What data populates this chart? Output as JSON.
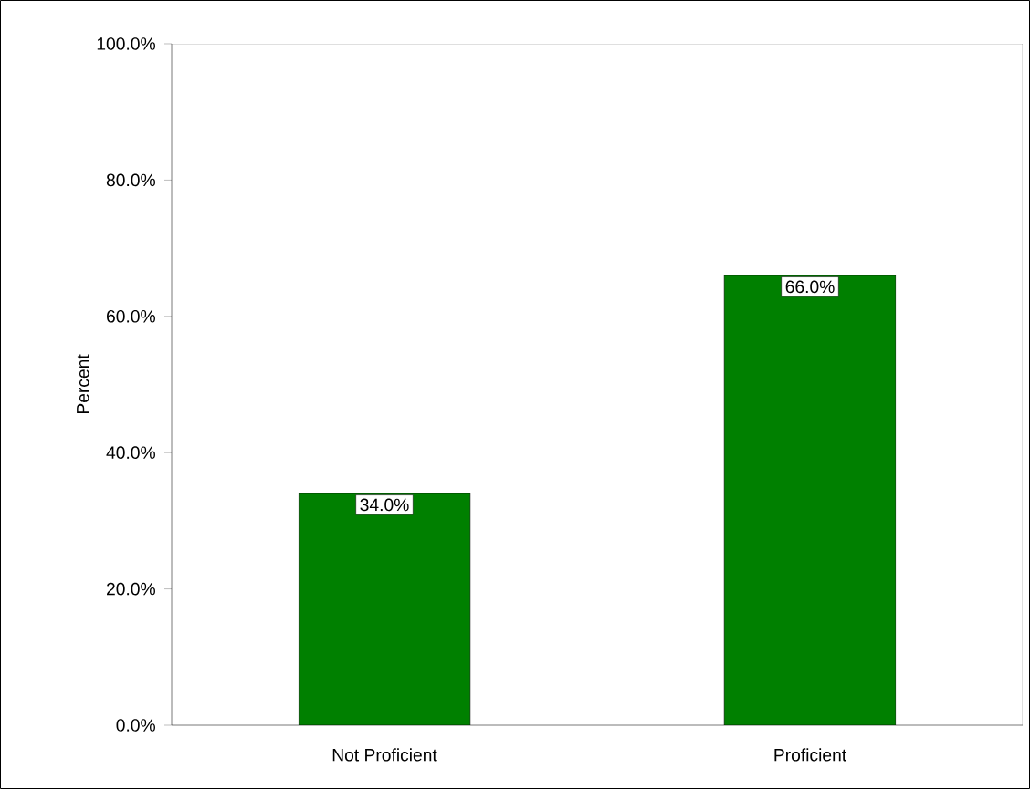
{
  "chart_data": {
    "type": "bar",
    "ylabel": "Percent",
    "categories": [
      "Not Proficient",
      "Proficient"
    ],
    "values": [
      34.0,
      66.0
    ],
    "color": "#008000",
    "value_labels": [
      "34.0%",
      "66.0%"
    ],
    "ylim": [
      0,
      100
    ],
    "yticks": [
      {
        "value": 0,
        "label": "0.0%"
      },
      {
        "value": 20,
        "label": "20.0%"
      },
      {
        "value": 40,
        "label": "40.0%"
      },
      {
        "value": 60,
        "label": "60.0%"
      },
      {
        "value": 80,
        "label": "80.0%"
      },
      {
        "value": 100,
        "label": "100.0%"
      }
    ],
    "grid": false
  }
}
